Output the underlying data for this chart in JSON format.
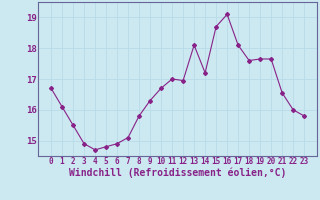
{
  "x": [
    0,
    1,
    2,
    3,
    4,
    5,
    6,
    7,
    8,
    9,
    10,
    11,
    12,
    13,
    14,
    15,
    16,
    17,
    18,
    19,
    20,
    21,
    22,
    23
  ],
  "y": [
    16.7,
    16.1,
    15.5,
    14.9,
    14.7,
    14.8,
    14.9,
    15.1,
    15.8,
    16.3,
    16.7,
    17.0,
    16.95,
    18.1,
    17.2,
    18.7,
    19.1,
    18.1,
    17.6,
    17.65,
    17.65,
    16.55,
    16.0,
    15.8
  ],
  "line_color": "#882288",
  "marker": "D",
  "marker_size": 2.0,
  "bg_color": "#cce8f0",
  "grid_color": "#b8dce8",
  "xlabel": "Windchill (Refroidissement éolien,°C)",
  "xlabel_color": "#882288",
  "ylim": [
    14.5,
    19.5
  ],
  "yticks": [
    15,
    16,
    17,
    18,
    19
  ],
  "xticks": [
    0,
    1,
    2,
    3,
    4,
    5,
    6,
    7,
    8,
    9,
    10,
    11,
    12,
    13,
    14,
    15,
    16,
    17,
    18,
    19,
    20,
    21,
    22,
    23
  ],
  "tick_color": "#882288",
  "tick_fontsize": 5.5,
  "xlabel_fontsize": 7.0,
  "ytick_fontsize": 6.5,
  "axis_color": "#888888",
  "spine_color": "#666699"
}
